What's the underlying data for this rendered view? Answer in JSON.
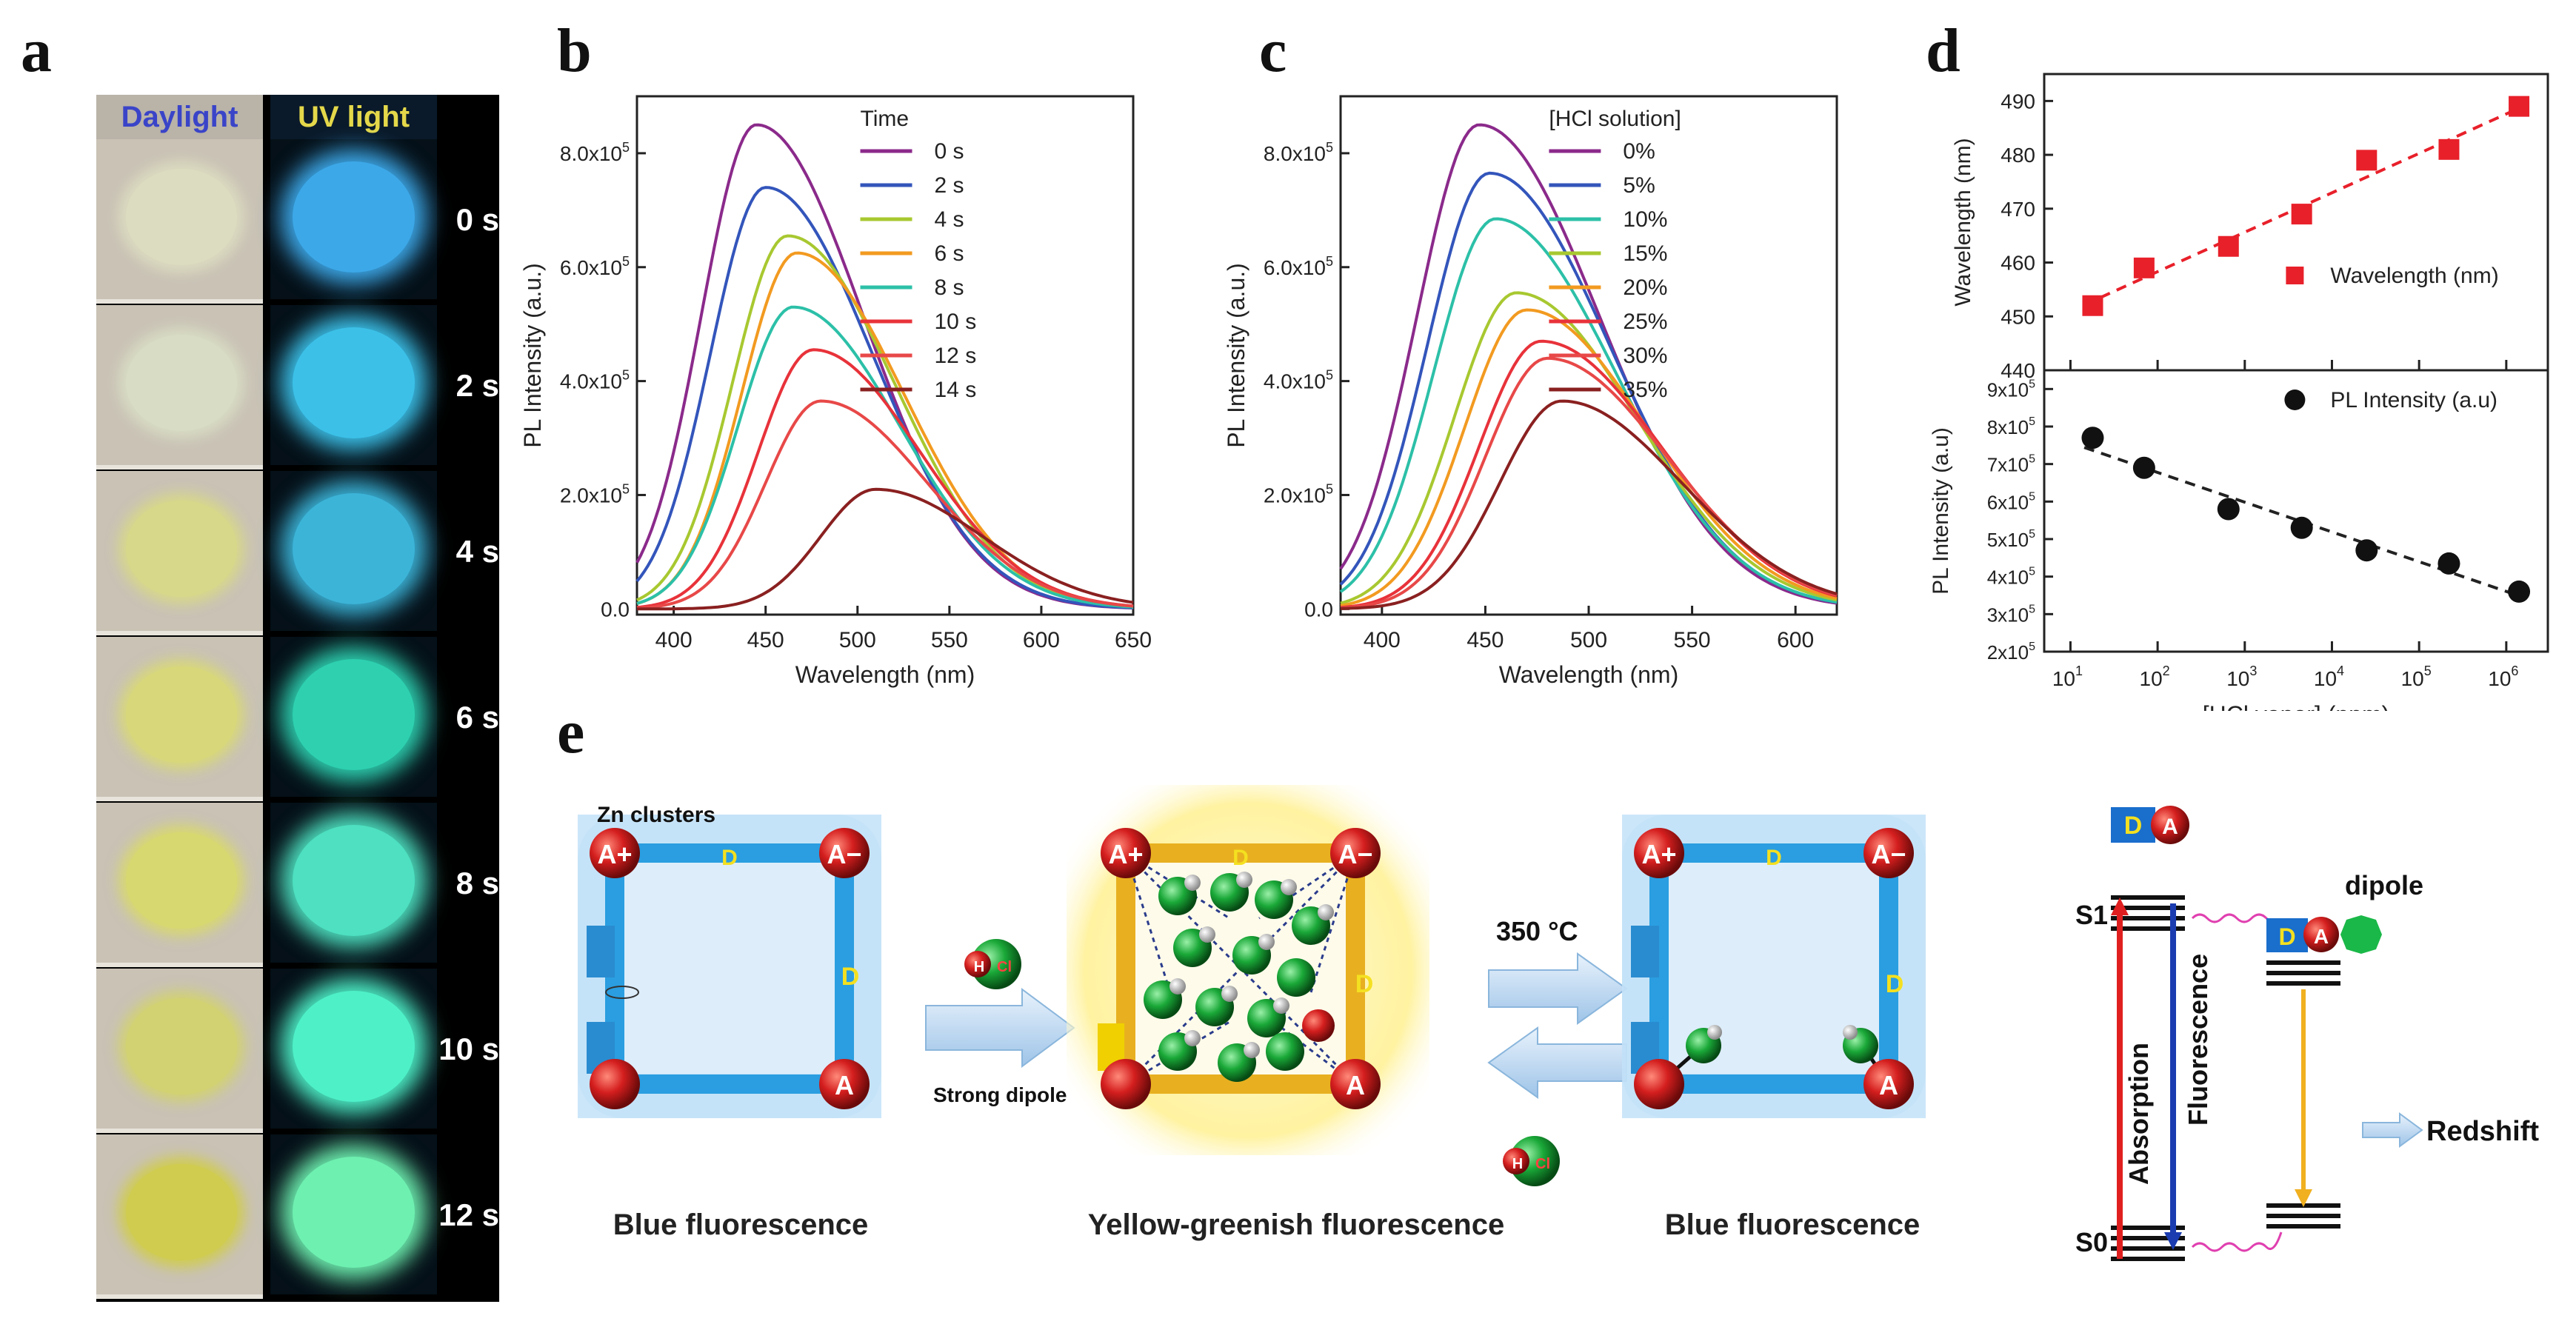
{
  "panel_labels": {
    "a": "a",
    "b": "b",
    "c": "c",
    "d": "d",
    "e": "e"
  },
  "panel_a": {
    "header_left": "Daylight",
    "header_right": "UV light",
    "times": [
      "0 s",
      "2 s",
      "4 s",
      "6 s",
      "8 s",
      "10 s",
      "12 s"
    ],
    "daylight_colors": [
      "#dcdcc0",
      "#d8dcc4",
      "#d8d88a",
      "#d8d87a",
      "#d8d870",
      "#d2d272",
      "#d0cc50"
    ],
    "uv_colors": [
      "#3da8e8",
      "#3cc0e8",
      "#3cb4d8",
      "#2ed0b0",
      "#4ee0c0",
      "#4ef0c8",
      "#6ef0b0"
    ]
  },
  "chart_data": [
    {
      "type": "line",
      "title": "",
      "xlabel": "Wavelength (nm)",
      "ylabel": "PL Intensity (a.u.)",
      "xlim": [
        380,
        650
      ],
      "ylim": [
        -0.1,
        9.0
      ],
      "xticks": [
        400,
        450,
        500,
        550,
        600,
        650
      ],
      "yticks": [
        "0.0",
        "2.0x10",
        "4.0x10",
        "6.0x10",
        "8.0x10"
      ],
      "legend_title": "Time",
      "series": [
        {
          "name": "0 s",
          "peak_x": 445,
          "peak": 8.5,
          "color": "#8b2a8b"
        },
        {
          "name": "2 s",
          "peak_x": 450,
          "peak": 7.4,
          "color": "#3355bb"
        },
        {
          "name": "4 s",
          "peak_x": 462,
          "peak": 6.55,
          "color": "#a8c830"
        },
        {
          "name": "6 s",
          "peak_x": 467,
          "peak": 6.25,
          "color": "#f29a20"
        },
        {
          "name": "8 s",
          "peak_x": 465,
          "peak": 5.3,
          "color": "#2cc0a8"
        },
        {
          "name": "10 s",
          "peak_x": 476,
          "peak": 4.55,
          "color": "#e8323a"
        },
        {
          "name": "12 s",
          "peak_x": 480,
          "peak": 3.65,
          "color": "#e84848"
        },
        {
          "name": "14 s",
          "peak_x": 510,
          "peak": 2.1,
          "color": "#8a2020"
        }
      ]
    },
    {
      "type": "line",
      "title": "",
      "xlabel": "Wavelength (nm)",
      "ylabel": "PL Intensity (a.u.)",
      "xlim": [
        380,
        620
      ],
      "ylim": [
        -0.1,
        9.0
      ],
      "xticks": [
        400,
        450,
        500,
        550,
        600
      ],
      "yticks": [
        "0.0",
        "2.0x10",
        "4.0x10",
        "6.0x10",
        "8.0x10"
      ],
      "legend_title": "[HCl solution]",
      "series": [
        {
          "name": "0%",
          "peak_x": 447,
          "peak": 8.5,
          "color": "#8b2a8b"
        },
        {
          "name": "5%",
          "peak_x": 452,
          "peak": 7.65,
          "color": "#3355bb"
        },
        {
          "name": "10%",
          "peak_x": 455,
          "peak": 6.85,
          "color": "#2cc0a8"
        },
        {
          "name": "15%",
          "peak_x": 465,
          "peak": 5.55,
          "color": "#a8c830"
        },
        {
          "name": "20%",
          "peak_x": 470,
          "peak": 5.25,
          "color": "#f29a20"
        },
        {
          "name": "25%",
          "peak_x": 477,
          "peak": 4.7,
          "color": "#e8323a"
        },
        {
          "name": "30%",
          "peak_x": 480,
          "peak": 4.4,
          "color": "#e84848"
        },
        {
          "name": "35%",
          "peak_x": 487,
          "peak": 3.65,
          "color": "#8a2020"
        }
      ]
    },
    {
      "type": "scatter",
      "title": "",
      "xlabel": "",
      "ylabel": "Wavelength (nm)",
      "xscale": "log",
      "ylim": [
        440,
        495
      ],
      "yticks": [
        440,
        450,
        460,
        470,
        480,
        490
      ],
      "legend": "Wavelength (nm)",
      "color": "#e8202a",
      "x": [
        18,
        70,
        650,
        4500,
        25000,
        220000,
        1400000
      ],
      "y": [
        452,
        459,
        463,
        469,
        479,
        481,
        489
      ]
    },
    {
      "type": "scatter",
      "title": "",
      "xlabel": "[HCl vapor] (ppm)",
      "ylabel": "PL Intensity (a.u)",
      "xscale": "log",
      "ylim": [
        2,
        9.5
      ],
      "yticks": [
        "2x10",
        "3x10",
        "4x10",
        "5x10",
        "6x10",
        "7x10",
        "8x10",
        "9x10"
      ],
      "xticks": [
        "10",
        "10",
        "10",
        "10",
        "10",
        "10"
      ],
      "xtick_exp": [
        "1",
        "2",
        "3",
        "4",
        "5",
        "6"
      ],
      "legend": "PL Intensity (a.u)",
      "color": "#111111",
      "x": [
        18,
        70,
        650,
        4500,
        25000,
        220000,
        1400000
      ],
      "y": [
        7.7,
        6.9,
        5.8,
        5.3,
        4.7,
        4.35,
        3.6
      ]
    }
  ],
  "panel_e": {
    "zn_clusters": "Zn clusters",
    "strong_dipole": "Strong dipole",
    "temp": "350 °C",
    "caption_left": "Blue fluorescence",
    "caption_mid": "Yellow-greenish fluorescence",
    "caption_right": "Blue fluorescence",
    "a_plus": "A+",
    "a_minus": "A−",
    "a": "A",
    "d": "D",
    "h": "H",
    "cl": "Cl",
    "dipole": "dipole",
    "s1": "S1",
    "s0": "S0",
    "absorption": "Absorption",
    "fluorescence": "Fluorescence",
    "redshift": "Redshift",
    "exponent": "5"
  }
}
